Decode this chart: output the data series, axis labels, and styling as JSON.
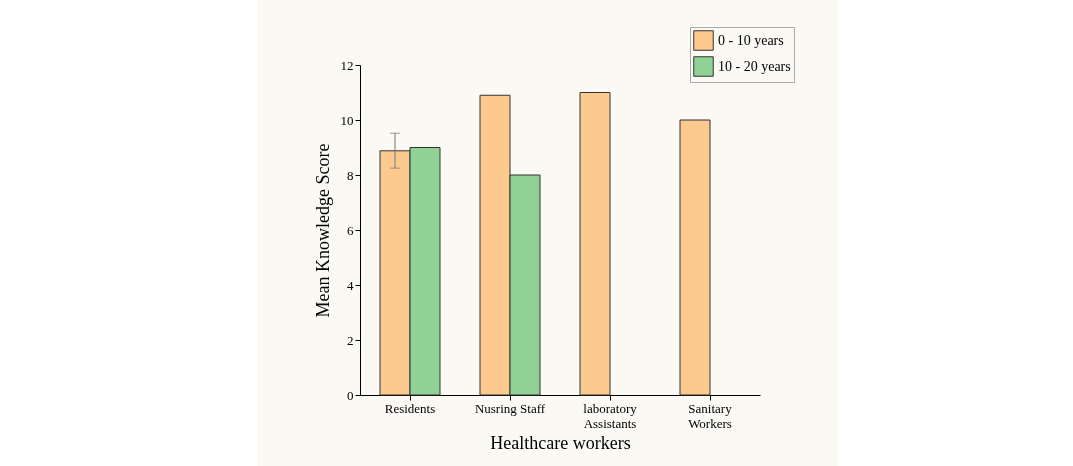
{
  "chart_data": {
    "type": "bar",
    "xlabel": "Healthcare workers",
    "ylabel": "Mean Knowledge Score",
    "categories": [
      "Residents",
      "Nusring Staff",
      "laboratory Assistants",
      "Sanitary Workers"
    ],
    "series": [
      {
        "name": "0 - 10 years",
        "color": "#fcc98f",
        "values": [
          8.88,
          10.9,
          11.0,
          10.0
        ],
        "errors": [
          [
            8.25,
            9.52
          ],
          null,
          null,
          null
        ]
      },
      {
        "name": "10 - 20 years",
        "color": "#90d195",
        "values": [
          9.0,
          8.0,
          null,
          null
        ]
      }
    ],
    "ylim": [
      0,
      12
    ],
    "yticks": [
      0,
      2,
      4,
      6,
      8,
      10,
      12
    ],
    "grid": false,
    "legend": "top right"
  }
}
